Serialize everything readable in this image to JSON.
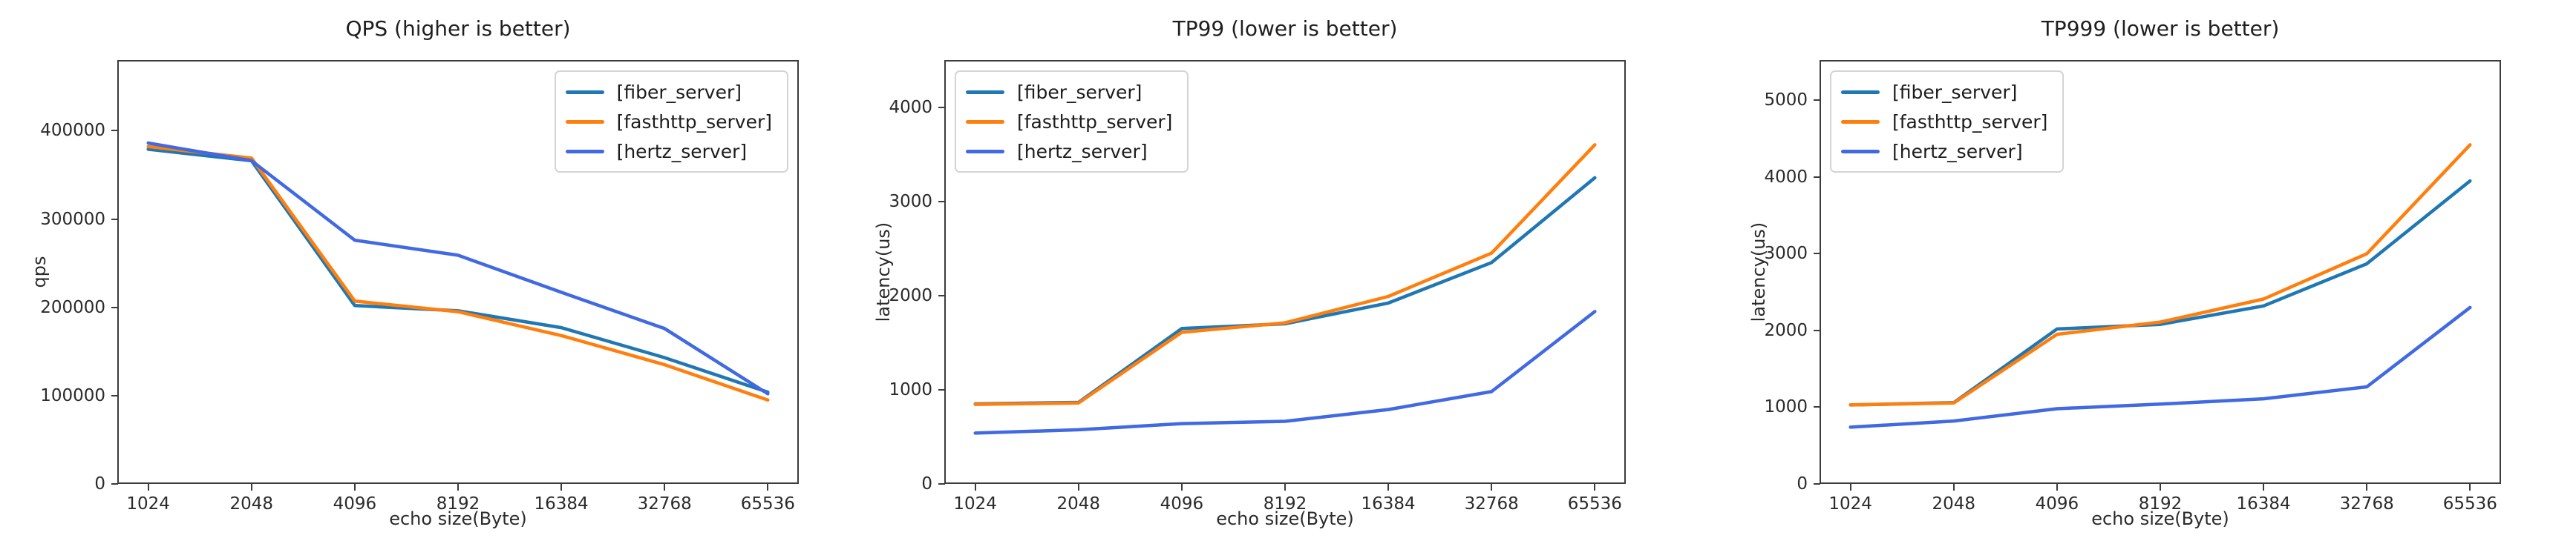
{
  "chart_data": [
    {
      "type": "line",
      "title": "QPS (higher is better)",
      "xlabel": "echo size(Byte)",
      "ylabel": "qps",
      "categories": [
        "1024",
        "2048",
        "4096",
        "8192",
        "16384",
        "32768",
        "65536"
      ],
      "yticks": [
        0,
        100000,
        200000,
        300000,
        400000
      ],
      "ylim": [
        0,
        480000
      ],
      "x_axis_type": "category",
      "grid": false,
      "legend_position": "upper right",
      "series": [
        {
          "name": "[fiber_server]",
          "color": "#1f77b4",
          "values": [
            379000,
            366000,
            202000,
            196000,
            177000,
            143000,
            104000
          ]
        },
        {
          "name": "[fasthttp_server]",
          "color": "#ff7f0e",
          "values": [
            382000,
            369000,
            207000,
            195000,
            168000,
            135000,
            95000
          ]
        },
        {
          "name": "[hertz_server]",
          "color": "#4169e1",
          "values": [
            386000,
            366000,
            276000,
            259000,
            217000,
            176000,
            102000
          ]
        }
      ]
    },
    {
      "type": "line",
      "title": "TP99 (lower is better)",
      "xlabel": "echo size(Byte)",
      "ylabel": "latency(us)",
      "categories": [
        "1024",
        "2048",
        "4096",
        "8192",
        "16384",
        "32768",
        "65536"
      ],
      "yticks": [
        0,
        1000,
        2000,
        3000,
        4000
      ],
      "ylim": [
        0,
        4500
      ],
      "x_axis_type": "category",
      "grid": false,
      "legend_position": "upper left",
      "series": [
        {
          "name": "[fiber_server]",
          "color": "#1f77b4",
          "values": [
            850,
            865,
            1650,
            1700,
            1920,
            2350,
            3250
          ]
        },
        {
          "name": "[fasthttp_server]",
          "color": "#ff7f0e",
          "values": [
            845,
            860,
            1610,
            1710,
            1990,
            2450,
            3600
          ]
        },
        {
          "name": "[hertz_server]",
          "color": "#4169e1",
          "values": [
            540,
            575,
            640,
            665,
            790,
            980,
            1830
          ]
        }
      ]
    },
    {
      "type": "line",
      "title": "TP999 (lower is better)",
      "xlabel": "echo size(Byte)",
      "ylabel": "latency(us)",
      "categories": [
        "1024",
        "2048",
        "4096",
        "8192",
        "16384",
        "32768",
        "65536"
      ],
      "yticks": [
        0,
        1000,
        2000,
        3000,
        4000,
        5000
      ],
      "ylim": [
        0,
        5525
      ],
      "x_axis_type": "category",
      "grid": false,
      "legend_position": "upper left",
      "series": [
        {
          "name": "[fiber_server]",
          "color": "#1f77b4",
          "values": [
            1030,
            1060,
            2020,
            2080,
            2320,
            2870,
            3950
          ]
        },
        {
          "name": "[fasthttp_server]",
          "color": "#ff7f0e",
          "values": [
            1030,
            1055,
            1950,
            2110,
            2410,
            3000,
            4420
          ]
        },
        {
          "name": "[hertz_server]",
          "color": "#4169e1",
          "values": [
            740,
            820,
            980,
            1040,
            1110,
            1265,
            2300
          ]
        }
      ]
    }
  ]
}
